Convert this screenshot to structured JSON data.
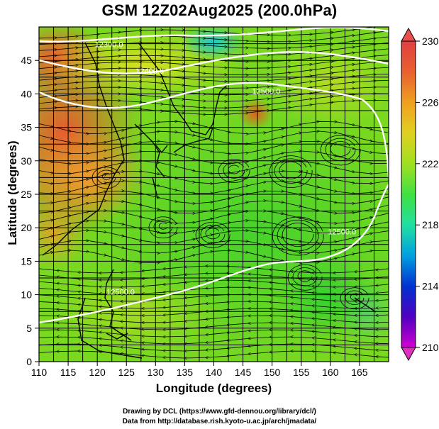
{
  "title": "GSM 12Z02Aug2025 (200.0hPa)",
  "chart_data": {
    "type": "heatmap",
    "variable": "temperature with streamlines and geopotential height contours",
    "xlabel": "Longitude (degrees)",
    "ylabel": "Latitude  (degrees)",
    "xlim": [
      110,
      170
    ],
    "ylim": [
      0,
      50
    ],
    "x_ticks": [
      "110",
      "115",
      "120",
      "125",
      "130",
      "135",
      "140",
      "145",
      "150",
      "155",
      "160",
      "165"
    ],
    "y_ticks": [
      "0",
      "5",
      "10",
      "15",
      "20",
      "25",
      "30",
      "35",
      "40",
      "45"
    ],
    "colorbar": {
      "range": [
        210,
        230
      ],
      "tick_labels": [
        "210",
        "214",
        "218",
        "222",
        "226",
        "230"
      ],
      "colors": [
        "#d000d0",
        "#5000c0",
        "#0030d0",
        "#00a0e0",
        "#20e0a0",
        "#40e040",
        "#a0e020",
        "#e0d020",
        "#f0a020",
        "#e86030",
        "#e04040"
      ]
    },
    "contour_labels": [
      {
        "text": "12500.0",
        "lon": 149,
        "lat": 40
      },
      {
        "text": "12500.0",
        "lon": 124,
        "lat": 10
      },
      {
        "text": "12300.0",
        "lon": 122,
        "lat": 47
      },
      {
        "text": "12400.0",
        "lon": 129,
        "lat": 43
      },
      {
        "text": "12500.0",
        "lon": 162,
        "lat": 19
      }
    ]
  },
  "credits": {
    "line1": "Drawing by DCL (https://www.gfd-dennou.org/library/dcl/)",
    "line2": "Data from http://database.rish.kyoto-u.ac.jp/arch/jmadata/"
  }
}
